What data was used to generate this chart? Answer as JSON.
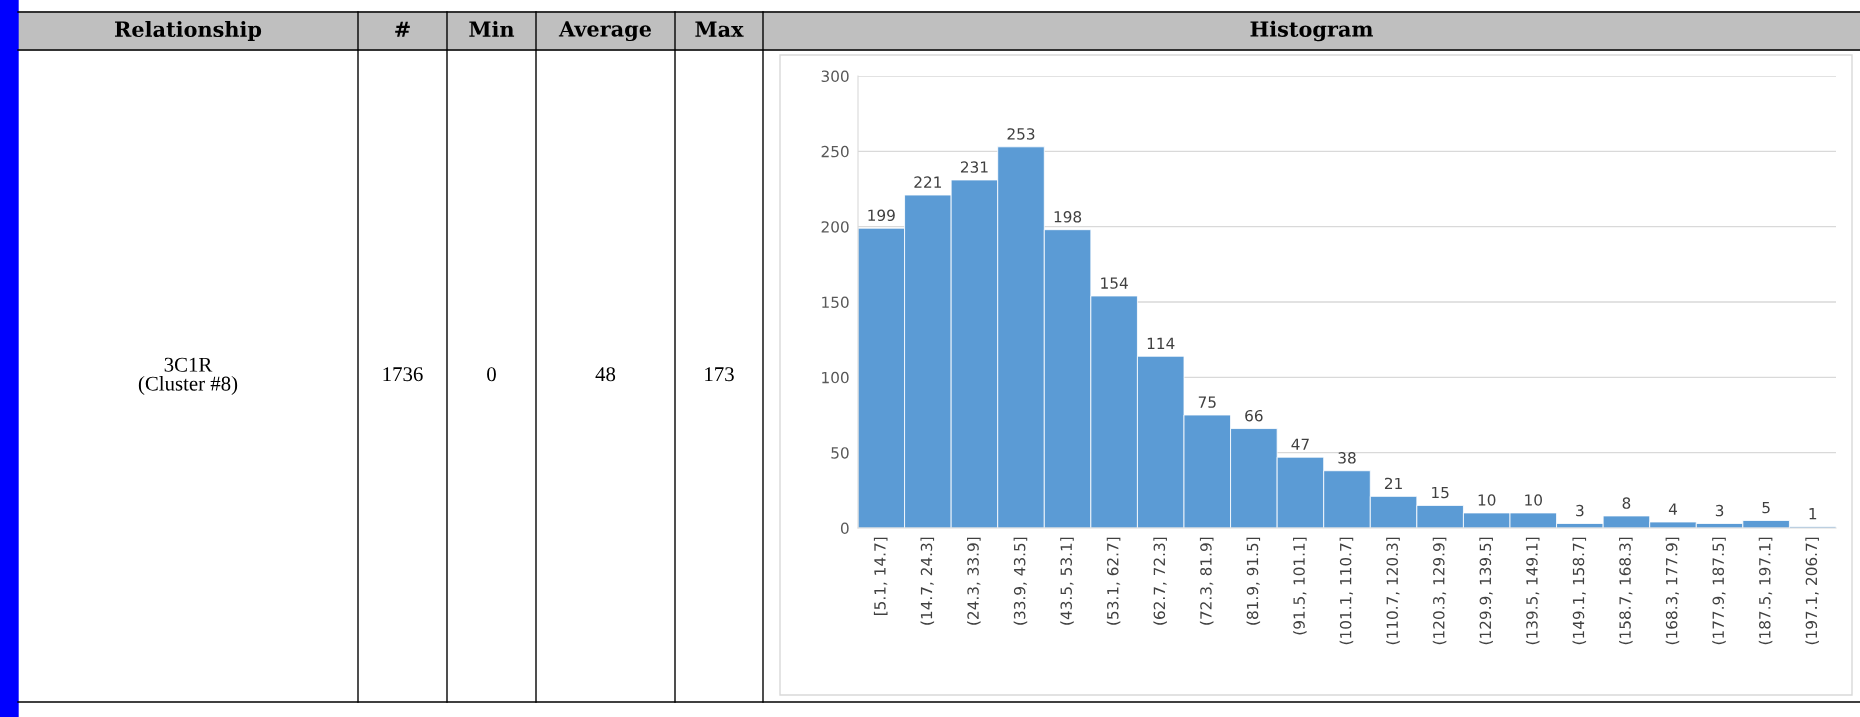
{
  "chart_data": [
    {
      "type": "other",
      "annotations": [
        "Relationship",
        "#",
        "Min",
        "Average",
        "Max",
        "3C1R\n(Cluster #8)",
        "1736",
        "0",
        "48",
        "173"
      ]
    },
    {
      "type": "bar",
      "title": "Histogram",
      "categories": [
        "[5.1, 14.7]",
        "(14.7, 24.3]",
        "(24.3, 33.9]",
        "(33.9, 43.5]",
        "(43.5, 53.1]",
        "(53.1, 62.7]",
        "(62.7, 72.3]",
        "(72.3, 81.9]",
        "(81.9, 91.5]",
        "(91.5, 101.1]",
        "(101.1, 110.7]",
        "(110.7, 120.3]",
        "(120.3, 129.9]",
        "(129.9, 139.5]",
        "(139.5, 149.1]",
        "(149.1, 158.7]",
        "(158.7, 168.3]",
        "(168.3, 177.9]",
        "(177.9, 187.5]",
        "(187.5, 197.1]",
        "(197.1, 206.7]"
      ],
      "values": [
        199,
        221,
        231,
        253,
        198,
        154,
        114,
        75,
        66,
        47,
        38,
        21,
        15,
        10,
        10,
        3,
        8,
        4,
        3,
        5,
        1
      ],
      "color": "#5b9bd5",
      "ylim": [
        0,
        300
      ],
      "yticks": [
        0,
        50,
        100,
        150,
        200,
        250,
        300
      ],
      "grid": "y",
      "data_labels": true
    }
  ]
}
